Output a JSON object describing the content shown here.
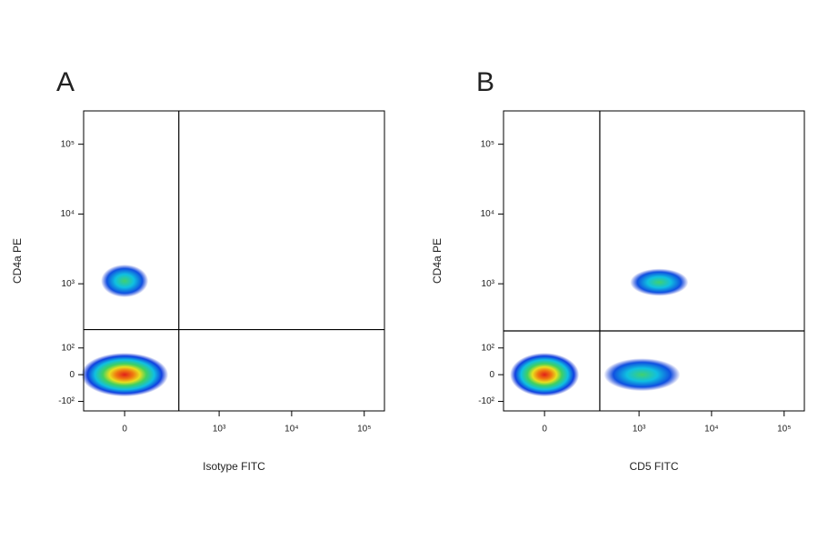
{
  "chart_data": [
    {
      "type": "scatter",
      "panel_label": "A",
      "x_label": "Isotype FITC",
      "y_label": "CD4a PE",
      "xlim": [
        -170,
        190000
      ],
      "ylim": [
        -150,
        300000
      ],
      "xticks": [
        0,
        {
          "value": 1000,
          "label": "10³"
        },
        {
          "value": 10000,
          "label": "10⁴"
        },
        {
          "value": 100000,
          "label": "10⁵"
        }
      ],
      "yticks": [
        {
          "value": -100,
          "label": "-10²"
        },
        0,
        {
          "value": 100,
          "label": "10²"
        },
        {
          "value": 1000,
          "label": "10³"
        },
        {
          "value": 10000,
          "label": "10⁴"
        },
        {
          "value": 100000,
          "label": "10⁵"
        }
      ],
      "gate_x": 270,
      "gate_y": 210,
      "gate_color": "#000000",
      "x": [
        0,
        0
      ],
      "values": [
        0,
        1100
      ]
    },
    {
      "type": "scatter",
      "panel_label": "B",
      "x_label": "CD5 FITC",
      "y_label": "CD4a PE",
      "xlim": [
        -170,
        190000
      ],
      "ylim": [
        -150,
        300000
      ],
      "xticks": [
        0,
        {
          "value": 1000,
          "label": "10³"
        },
        {
          "value": 10000,
          "label": "10⁴"
        },
        {
          "value": 100000,
          "label": "10⁵"
        }
      ],
      "yticks": [
        {
          "value": -100,
          "label": "-10²"
        },
        0,
        {
          "value": 100,
          "label": "10²"
        },
        {
          "value": 1000,
          "label": "10³"
        },
        {
          "value": 10000,
          "label": "10⁴"
        },
        {
          "value": 100000,
          "label": "10⁵"
        }
      ],
      "gate_x": 280,
      "gate_y": 200,
      "gate_color": "#000000",
      "x": [
        0,
        1100,
        1900
      ],
      "values": [
        0,
        0,
        1050
      ]
    }
  ]
}
